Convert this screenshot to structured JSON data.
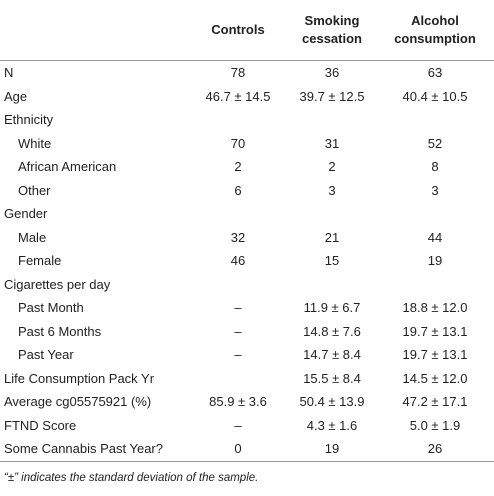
{
  "table": {
    "header": [
      "Controls",
      "Smoking cessation",
      "Alcohol consumption"
    ],
    "rows": [
      [
        "N",
        "78",
        "36",
        "63"
      ],
      [
        "Age",
        "46.7 ± 14.5",
        "39.7 ± 12.5",
        "40.4 ± 10.5"
      ],
      [
        "Ethnicity"
      ],
      [
        "White",
        "70",
        "31",
        "52"
      ],
      [
        "African American",
        "2",
        "2",
        "8"
      ],
      [
        "Other",
        "6",
        "3",
        "3"
      ],
      [
        "Gender"
      ],
      [
        "Male",
        "32",
        "21",
        "44"
      ],
      [
        "Female",
        "46",
        "15",
        "19"
      ],
      [
        "Cigarettes per day"
      ],
      [
        "Past Month",
        "–",
        "11.9 ± 6.7",
        "18.8 ± 12.0"
      ],
      [
        "Past 6 Months",
        "–",
        "14.8 ± 7.6",
        "19.7 ± 13.1"
      ],
      [
        "Past Year",
        "–",
        "14.7 ± 8.4",
        "19.7 ± 13.1"
      ],
      [
        "Life Consumption Pack Yr",
        "",
        "15.5 ± 8.4",
        "14.5 ± 12.0"
      ],
      [
        "Average cg05575921 (%)",
        "85.9 ± 3.6",
        "50.4 ± 13.9",
        "47.2 ± 17.1"
      ],
      [
        "FTND Score",
        "–",
        "4.3 ± 1.6",
        "5.0 ± 1.9"
      ],
      [
        "Some Cannabis Past Year?",
        "0",
        "19",
        "26"
      ]
    ]
  },
  "footnote": "“±” indicates the standard deviation of the sample."
}
